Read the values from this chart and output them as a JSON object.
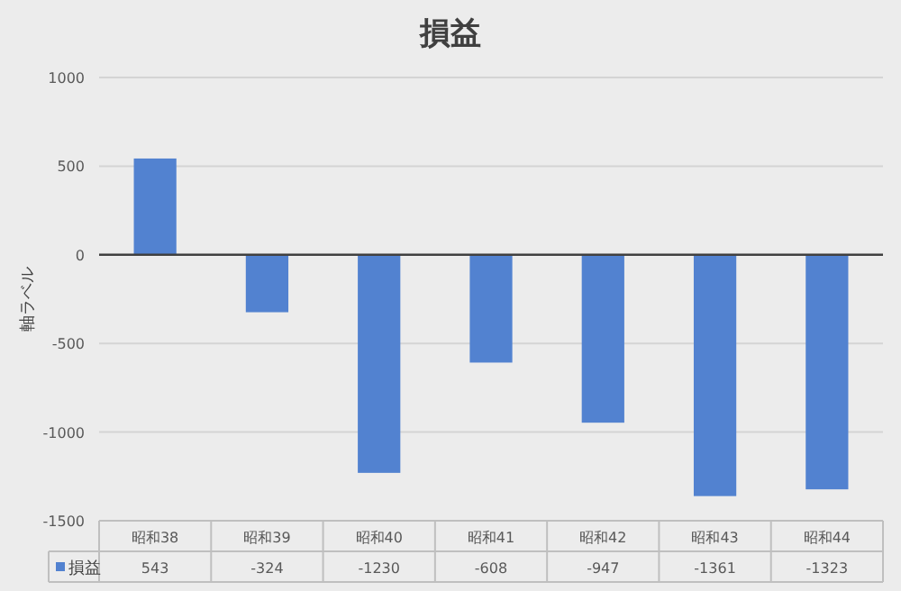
{
  "chart_data": {
    "type": "bar",
    "title": "損益",
    "ylabel": "軸ラベル",
    "categories": [
      "昭和38",
      "昭和39",
      "昭和40",
      "昭和41",
      "昭和42",
      "昭和43",
      "昭和44"
    ],
    "series": [
      {
        "name": "損益",
        "color": "#5282d0",
        "values": [
          543,
          -324,
          -1230,
          -608,
          -947,
          -1361,
          -1323
        ]
      }
    ],
    "ylim": [
      -1500,
      1000
    ],
    "yticks": [
      -1500,
      -1000,
      -500,
      0,
      500,
      1000
    ],
    "grid": "y",
    "legend": "bottom",
    "data_labels": true
  }
}
